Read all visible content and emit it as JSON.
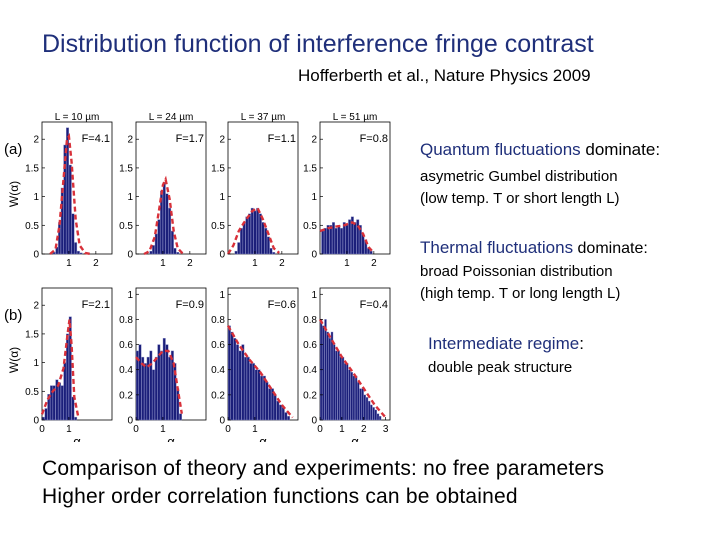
{
  "slide": {
    "title": "Distribution function of interference fringe contrast",
    "reference": "Hofferberth et al., Nature Physics 2009",
    "notes": [
      {
        "head": "Quantum fluctuations",
        "head_suffix": " dominate:",
        "lines": [
          "asymetric Gumbel distribution",
          "(low temp. T or short length L)"
        ]
      },
      {
        "head": "Thermal fluctuations",
        "head_suffix": " dominate:",
        "lines": [
          "broad Poissonian distribution",
          "(high temp. T or long length L)"
        ]
      },
      {
        "head": "Intermediate regime",
        "head_suffix": ":",
        "lines": [
          "double peak structure"
        ]
      }
    ],
    "bottom_lines": [
      "Comparison of theory and experiments: no free parameters",
      "Higher order correlation functions can be obtained"
    ]
  },
  "colors": {
    "bar": "#1b1f7a",
    "curve": "#d8313a",
    "heading": "#1f2f7a"
  },
  "chart_data": [
    {
      "type": "bar",
      "panel_label": "(a)",
      "title": "L = 10 µm",
      "F": "F=4.1",
      "ylabel": "W(α)",
      "xlabel": "",
      "ylim": [
        0,
        2.3
      ],
      "yticks": [
        "0",
        "0.5",
        "1",
        "1.5",
        "2"
      ],
      "xlim": [
        0,
        2.6
      ],
      "xticks": [
        "1",
        "2"
      ],
      "x": [
        0.45,
        0.55,
        0.65,
        0.75,
        0.85,
        0.95,
        1.05,
        1.15,
        1.25,
        1.35,
        1.45
      ],
      "values": [
        0.03,
        0.12,
        0.55,
        1.15,
        1.9,
        2.2,
        1.55,
        0.7,
        0.2,
        0.05,
        0.02
      ],
      "theory": [
        [
          0.3,
          0
        ],
        [
          0.5,
          0.08
        ],
        [
          0.65,
          0.5
        ],
        [
          0.8,
          1.3
        ],
        [
          0.93,
          2.0
        ],
        [
          1.0,
          2.05
        ],
        [
          1.1,
          1.6
        ],
        [
          1.25,
          0.6
        ],
        [
          1.4,
          0.15
        ],
        [
          1.6,
          0.02
        ],
        [
          1.8,
          0
        ]
      ]
    },
    {
      "type": "bar",
      "title": "L = 24 µm",
      "F": "F=1.7",
      "ylabel": "",
      "xlabel": "",
      "ylim": [
        0,
        2.3
      ],
      "yticks": [
        "0",
        "0.5",
        "1",
        "1.5",
        "2"
      ],
      "xlim": [
        0,
        2.6
      ],
      "xticks": [
        "1",
        "2"
      ],
      "x": [
        0.55,
        0.65,
        0.75,
        0.85,
        0.95,
        1.05,
        1.15,
        1.25,
        1.35,
        1.45,
        1.55
      ],
      "values": [
        0.05,
        0.15,
        0.35,
        0.6,
        1.1,
        1.25,
        1.05,
        0.8,
        0.4,
        0.1,
        0.03
      ],
      "theory": [
        [
          0.3,
          0
        ],
        [
          0.5,
          0.05
        ],
        [
          0.7,
          0.3
        ],
        [
          0.85,
          0.75
        ],
        [
          1.0,
          1.2
        ],
        [
          1.1,
          1.3
        ],
        [
          1.25,
          0.95
        ],
        [
          1.4,
          0.4
        ],
        [
          1.55,
          0.1
        ],
        [
          1.75,
          0
        ]
      ]
    },
    {
      "type": "bar",
      "title": "L = 37 µm",
      "F": "F=1.1",
      "ylabel": "",
      "xlabel": "",
      "ylim": [
        0,
        2.3
      ],
      "yticks": [
        "0",
        "0.5",
        "1",
        "1.5",
        "2"
      ],
      "xlim": [
        0,
        2.6
      ],
      "xticks": [
        "1",
        "2"
      ],
      "x": [
        0.3,
        0.4,
        0.5,
        0.6,
        0.7,
        0.8,
        0.9,
        1.0,
        1.1,
        1.2,
        1.3,
        1.4,
        1.5,
        1.6,
        1.7
      ],
      "values": [
        0.05,
        0.2,
        0.45,
        0.55,
        0.65,
        0.7,
        0.8,
        0.75,
        0.8,
        0.7,
        0.55,
        0.45,
        0.3,
        0.1,
        0.03
      ],
      "theory": [
        [
          0.0,
          0
        ],
        [
          0.2,
          0.15
        ],
        [
          0.4,
          0.4
        ],
        [
          0.6,
          0.55
        ],
        [
          0.9,
          0.75
        ],
        [
          1.1,
          0.8
        ],
        [
          1.3,
          0.6
        ],
        [
          1.5,
          0.35
        ],
        [
          1.7,
          0.1
        ],
        [
          1.9,
          0.02
        ]
      ]
    },
    {
      "type": "bar",
      "title": "L = 51 µm",
      "F": "F=0.8",
      "ylabel": "",
      "xlabel": "",
      "ylim": [
        0,
        2.3
      ],
      "yticks": [
        "0",
        "0.5",
        "1",
        "1.5",
        "2"
      ],
      "xlim": [
        0,
        2.6
      ],
      "xticks": [
        "1",
        "2"
      ],
      "x": [
        0.1,
        0.2,
        0.3,
        0.4,
        0.5,
        0.6,
        0.7,
        0.8,
        0.9,
        1.0,
        1.1,
        1.2,
        1.3,
        1.4,
        1.5,
        1.6,
        1.7,
        1.8,
        1.9
      ],
      "values": [
        0.4,
        0.45,
        0.5,
        0.5,
        0.55,
        0.45,
        0.5,
        0.45,
        0.55,
        0.5,
        0.6,
        0.65,
        0.55,
        0.6,
        0.5,
        0.35,
        0.25,
        0.1,
        0.05
      ],
      "theory": [
        [
          0.0,
          0.4
        ],
        [
          0.3,
          0.45
        ],
        [
          0.6,
          0.48
        ],
        [
          0.9,
          0.5
        ],
        [
          1.2,
          0.55
        ],
        [
          1.4,
          0.5
        ],
        [
          1.6,
          0.35
        ],
        [
          1.8,
          0.12
        ],
        [
          2.0,
          0.02
        ]
      ]
    },
    {
      "type": "bar",
      "panel_label": "(b)",
      "F": "F=2.1",
      "ylabel": "W(α)",
      "xlabel": "α",
      "ylim": [
        0,
        2.3
      ],
      "yticks": [
        "0",
        "0.5",
        "1",
        "1.5",
        "2"
      ],
      "xlim": [
        0,
        2.6
      ],
      "xticks": [
        "0",
        "1"
      ],
      "x": [
        0.05,
        0.15,
        0.25,
        0.35,
        0.45,
        0.55,
        0.65,
        0.75,
        0.85,
        0.95,
        1.05,
        1.15,
        1.25
      ],
      "values": [
        0.05,
        0.2,
        0.45,
        0.6,
        0.6,
        0.7,
        0.65,
        0.6,
        1.0,
        1.5,
        1.8,
        0.4,
        0.05
      ],
      "theory": [
        [
          0.0,
          0.1
        ],
        [
          0.2,
          0.35
        ],
        [
          0.4,
          0.5
        ],
        [
          0.6,
          0.6
        ],
        [
          0.8,
          0.9
        ],
        [
          0.95,
          1.5
        ],
        [
          1.02,
          1.75
        ],
        [
          1.1,
          1.3
        ],
        [
          1.2,
          0.4
        ],
        [
          1.35,
          0.05
        ]
      ]
    },
    {
      "type": "bar",
      "F": "F=0.9",
      "ylabel": "",
      "xlabel": "α",
      "ylim": [
        0,
        1.05
      ],
      "yticks": [
        "0",
        "0.2",
        "0.4",
        "0.6",
        "0.8",
        "1"
      ],
      "xlim": [
        0,
        2.6
      ],
      "xticks": [
        "0",
        "1"
      ],
      "x": [
        0.05,
        0.15,
        0.25,
        0.35,
        0.45,
        0.55,
        0.65,
        0.75,
        0.85,
        0.95,
        1.05,
        1.15,
        1.25,
        1.35,
        1.45,
        1.55,
        1.65
      ],
      "values": [
        0.55,
        0.6,
        0.5,
        0.45,
        0.5,
        0.55,
        0.4,
        0.5,
        0.6,
        0.55,
        0.65,
        0.6,
        0.5,
        0.55,
        0.45,
        0.25,
        0.05
      ],
      "theory": [
        [
          0.0,
          0.5
        ],
        [
          0.2,
          0.45
        ],
        [
          0.4,
          0.42
        ],
        [
          0.6,
          0.45
        ],
        [
          0.8,
          0.5
        ],
        [
          1.0,
          0.55
        ],
        [
          1.2,
          0.55
        ],
        [
          1.4,
          0.45
        ],
        [
          1.55,
          0.25
        ],
        [
          1.7,
          0.05
        ]
      ]
    },
    {
      "type": "bar",
      "F": "F=0.6",
      "ylabel": "",
      "xlabel": "α",
      "ylim": [
        0,
        1.05
      ],
      "yticks": [
        "0",
        "0.2",
        "0.4",
        "0.6",
        "0.8",
        "1"
      ],
      "xlim": [
        0,
        2.6
      ],
      "xticks": [
        "0",
        "1"
      ],
      "x": [
        0.05,
        0.15,
        0.25,
        0.35,
        0.45,
        0.55,
        0.65,
        0.75,
        0.85,
        0.95,
        1.05,
        1.15,
        1.25,
        1.35,
        1.45,
        1.55,
        1.65,
        1.75,
        1.85,
        1.95,
        2.05,
        2.15,
        2.25
      ],
      "values": [
        0.75,
        0.7,
        0.65,
        0.6,
        0.55,
        0.6,
        0.5,
        0.5,
        0.45,
        0.45,
        0.4,
        0.4,
        0.35,
        0.35,
        0.3,
        0.25,
        0.25,
        0.2,
        0.15,
        0.12,
        0.1,
        0.06,
        0.03
      ],
      "theory": [
        [
          0.0,
          0.75
        ],
        [
          0.4,
          0.6
        ],
        [
          0.8,
          0.48
        ],
        [
          1.2,
          0.38
        ],
        [
          1.6,
          0.25
        ],
        [
          2.0,
          0.12
        ],
        [
          2.4,
          0.02
        ]
      ]
    },
    {
      "type": "bar",
      "F": "F=0.4",
      "ylabel": "",
      "xlabel": "α",
      "ylim": [
        0,
        1.05
      ],
      "yticks": [
        "0",
        "0.2",
        "0.4",
        "0.6",
        "0.8",
        "1"
      ],
      "xlim": [
        0,
        3.2
      ],
      "xticks": [
        "0",
        "1",
        "2",
        "3"
      ],
      "x": [
        0.05,
        0.15,
        0.25,
        0.35,
        0.45,
        0.55,
        0.65,
        0.75,
        0.85,
        0.95,
        1.05,
        1.15,
        1.25,
        1.35,
        1.45,
        1.55,
        1.65,
        1.75,
        1.85,
        1.95,
        2.05,
        2.15,
        2.25,
        2.35,
        2.45,
        2.55,
        2.65,
        2.75
      ],
      "values": [
        0.8,
        0.75,
        0.8,
        0.7,
        0.65,
        0.7,
        0.6,
        0.55,
        0.55,
        0.5,
        0.5,
        0.45,
        0.45,
        0.4,
        0.38,
        0.35,
        0.35,
        0.3,
        0.25,
        0.25,
        0.2,
        0.18,
        0.15,
        0.12,
        0.1,
        0.08,
        0.05,
        0.03
      ],
      "theory": [
        [
          0.0,
          0.8
        ],
        [
          0.5,
          0.65
        ],
        [
          1.0,
          0.5
        ],
        [
          1.5,
          0.38
        ],
        [
          2.0,
          0.25
        ],
        [
          2.5,
          0.12
        ],
        [
          3.0,
          0.02
        ]
      ]
    }
  ]
}
